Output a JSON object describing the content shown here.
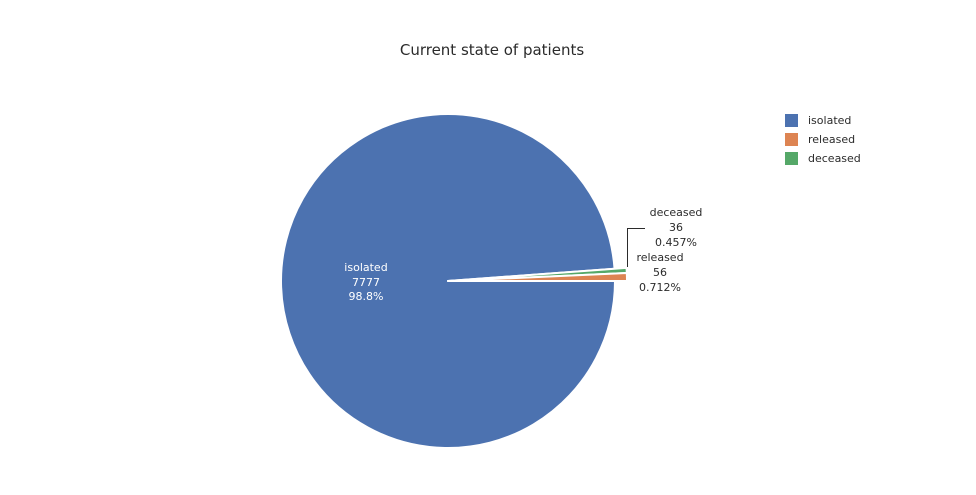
{
  "chart_data": {
    "type": "pie",
    "title": "Current state of patients",
    "categories": [
      "isolated",
      "released",
      "deceased"
    ],
    "values": [
      7777,
      56,
      36
    ],
    "colors": [
      "#4c72b0",
      "#dd8452",
      "#55a868"
    ],
    "background": "#ffffff",
    "legend_position": "right",
    "grid": false,
    "slices": [
      {
        "label": "isolated",
        "value": "7777",
        "percent": "98.8%",
        "color": "#4c72b0",
        "label_position": "inside"
      },
      {
        "label": "released",
        "value": "56",
        "percent": "0.712%",
        "color": "#dd8452",
        "label_position": "outside"
      },
      {
        "label": "deceased",
        "value": "36",
        "percent": "0.457%",
        "color": "#55a868",
        "label_position": "outside"
      }
    ]
  },
  "legend": {
    "items": [
      {
        "label": "isolated",
        "color": "#4c72b0"
      },
      {
        "label": "released",
        "color": "#dd8452"
      },
      {
        "label": "deceased",
        "color": "#55a868"
      }
    ]
  }
}
